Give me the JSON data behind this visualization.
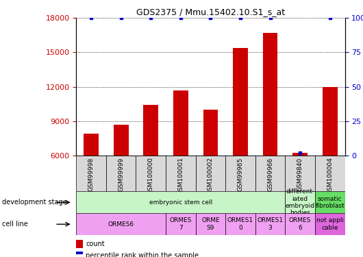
{
  "title": "GDS2375 / Mmu.15402.10.S1_s_at",
  "samples": [
    "GSM99998",
    "GSM99999",
    "GSM100000",
    "GSM100001",
    "GSM100002",
    "GSM99965",
    "GSM99966",
    "GSM99840",
    "GSM100004"
  ],
  "counts": [
    7900,
    8700,
    10400,
    11700,
    10000,
    15400,
    16700,
    6250,
    12000
  ],
  "percentiles": [
    100,
    100,
    100,
    100,
    100,
    100,
    100,
    2,
    100
  ],
  "ylim_left": [
    6000,
    18000
  ],
  "ylim_right": [
    0,
    100
  ],
  "yticks_left": [
    6000,
    9000,
    12000,
    15000,
    18000
  ],
  "yticks_right": [
    0,
    25,
    50,
    75,
    100
  ],
  "bar_color": "#cc0000",
  "percentile_color": "#0000cc",
  "bar_width": 0.5,
  "tick_label_color_left": "#cc0000",
  "tick_label_color_right": "#0000cc",
  "dev_stage_groups": [
    {
      "label": "embryonic stem cell",
      "start": 0,
      "end": 7,
      "color": "#c8f5c8"
    },
    {
      "label": "different-\niated\nembryoid\nbodies",
      "start": 7,
      "end": 8,
      "color": "#c8f5c8"
    },
    {
      "label": "somatic\nfibroblast",
      "start": 8,
      "end": 9,
      "color": "#66dd66"
    }
  ],
  "cell_line_groups": [
    {
      "label": "ORMES6",
      "start": 0,
      "end": 3,
      "color": "#f0a0f0"
    },
    {
      "label": "ORMES\n7",
      "start": 3,
      "end": 4,
      "color": "#f0a0f0"
    },
    {
      "label": "ORME\nS9",
      "start": 4,
      "end": 5,
      "color": "#f0a0f0"
    },
    {
      "label": "ORMES1\n0",
      "start": 5,
      "end": 6,
      "color": "#f0a0f0"
    },
    {
      "label": "ORMES1\n3",
      "start": 6,
      "end": 7,
      "color": "#f0a0f0"
    },
    {
      "label": "ORMES\n6",
      "start": 7,
      "end": 8,
      "color": "#f0a0f0"
    },
    {
      "label": "not appli\ncable",
      "start": 8,
      "end": 9,
      "color": "#dd66dd"
    }
  ],
  "development_stage_label": "development stage",
  "cell_line_label": "cell line",
  "legend_count_label": "count",
  "legend_pct_label": "percentile rank within the sample"
}
